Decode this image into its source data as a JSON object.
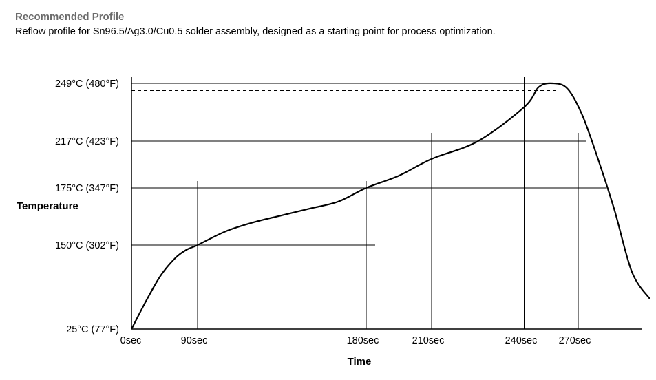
{
  "header": {
    "title": "Recommended Profile",
    "subtitle": "Reflow profile for Sn96.5/Ag3.0/Cu0.5 solder assembly, designed as a starting point for process optimization."
  },
  "chart_data": {
    "type": "line",
    "title": "Recommended Profile",
    "subtitle": "Reflow profile for Sn96.5/Ag3.0/Cu0.5 solder assembly, designed as a starting point for process optimization.",
    "xlabel": "Time",
    "ylabel": "Temperature",
    "grid": false,
    "x_ticks": [
      {
        "value": 0,
        "label": "0sec"
      },
      {
        "value": 90,
        "label": "90sec"
      },
      {
        "value": 180,
        "label": "180sec"
      },
      {
        "value": 210,
        "label": "210sec"
      },
      {
        "value": 240,
        "label": "240sec"
      },
      {
        "value": 270,
        "label": "270sec"
      }
    ],
    "y_ticks": [
      {
        "value": 25,
        "label": "25°C (77°F)"
      },
      {
        "value": 150,
        "label": "150°C (302°F)"
      },
      {
        "value": 175,
        "label": "175°C (347°F)"
      },
      {
        "value": 217,
        "label": "217°C (423°F)"
      },
      {
        "value": 249,
        "label": "249°C (480°F)"
      }
    ],
    "series": [
      {
        "x": [
          0,
          20,
          40,
          60,
          75,
          90,
          105,
          120,
          135,
          150,
          165,
          180,
          195,
          210,
          225,
          240,
          248,
          256,
          264,
          272,
          280,
          290,
          300,
          310
        ],
        "y": [
          25,
          67,
          105,
          131,
          143,
          150,
          156,
          160,
          163,
          166,
          169,
          175,
          186,
          201,
          217,
          236,
          247,
          249,
          246,
          232,
          206,
          166,
          110,
          70
        ]
      }
    ],
    "reference_lines": [
      {
        "value": 249,
        "style": "solid"
      },
      {
        "value": 245,
        "style": "dashed"
      },
      {
        "value": 217,
        "style": "solid"
      },
      {
        "value": 175,
        "style": "solid"
      },
      {
        "value": 150,
        "style": "solid"
      }
    ],
    "peak": {
      "x": 256,
      "y": 249
    },
    "xlim": [
      0,
      330
    ],
    "ylim": [
      25,
      249
    ]
  }
}
